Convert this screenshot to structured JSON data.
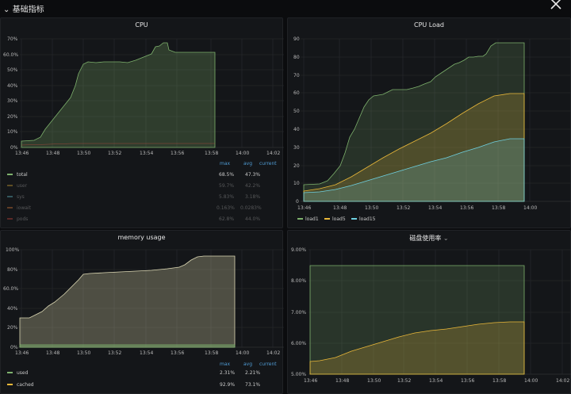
{
  "row": {
    "title": "基础指标"
  },
  "panels": {
    "cpu": {
      "title": "CPU",
      "y_ticks": [
        "70%",
        "60.0%",
        "50%",
        "40%",
        "30%",
        "20%",
        "10%",
        "0%"
      ],
      "x_ticks": [
        "13:46",
        "13:48",
        "13:50",
        "13:52",
        "13:54",
        "13:56",
        "13:58",
        "14:00",
        "14:02"
      ],
      "legend_headers": [
        "max",
        "avg",
        "current"
      ],
      "legend": [
        {
          "name": "total",
          "color": "#7eb26d",
          "max": "68.5%",
          "avg": "47.3%",
          "current": ""
        },
        {
          "name": "user",
          "color": "#eab839",
          "max": "59.7%",
          "avg": "42.2%",
          "current": ""
        },
        {
          "name": "sys",
          "color": "#6ed0e0",
          "max": "5.83%",
          "avg": "3.18%",
          "current": ""
        },
        {
          "name": "iowait",
          "color": "#ef843c",
          "max": "0.163%",
          "avg": "0.0283%",
          "current": ""
        },
        {
          "name": "pods",
          "color": "#e24d42",
          "max": "62.8%",
          "avg": "44.0%",
          "current": ""
        }
      ]
    },
    "load": {
      "title": "CPU Load",
      "y_ticks": [
        "90",
        "80",
        "70",
        "60",
        "50",
        "40",
        "30",
        "20",
        "10",
        "0"
      ],
      "x_ticks": [
        "13:46",
        "13:48",
        "13:50",
        "13:52",
        "13:54",
        "13:56",
        "13:58",
        "14:00"
      ],
      "legend": [
        {
          "name": "load1",
          "color": "#7eb26d"
        },
        {
          "name": "load5",
          "color": "#eab839"
        },
        {
          "name": "load15",
          "color": "#6ed0e0"
        }
      ]
    },
    "mem": {
      "title": "memory usage",
      "y_ticks": [
        "100%",
        "80%",
        "60.0%",
        "40%",
        "20%",
        "0%"
      ],
      "x_ticks": [
        "13:46",
        "13:48",
        "13:50",
        "13:52",
        "13:54",
        "13:56",
        "13:58",
        "14:00",
        "14:02"
      ],
      "legend_headers": [
        "max",
        "avg",
        "current"
      ],
      "legend": [
        {
          "name": "used",
          "color": "#7eb26d",
          "max": "2.31%",
          "avg": "2.21%",
          "current": ""
        },
        {
          "name": "cached",
          "color": "#eab839",
          "max": "92.9%",
          "avg": "73.1%",
          "current": ""
        }
      ]
    },
    "disk": {
      "title": "磁盘使用率",
      "y_ticks": [
        "9.00%",
        "8.00%",
        "7.00%",
        "6.00%",
        "5.00%"
      ],
      "x_ticks": [
        "13:46",
        "13:48",
        "13:50",
        "13:52",
        "13:54",
        "13:56",
        "13:58",
        "14:00",
        "14:02"
      ]
    }
  }
}
